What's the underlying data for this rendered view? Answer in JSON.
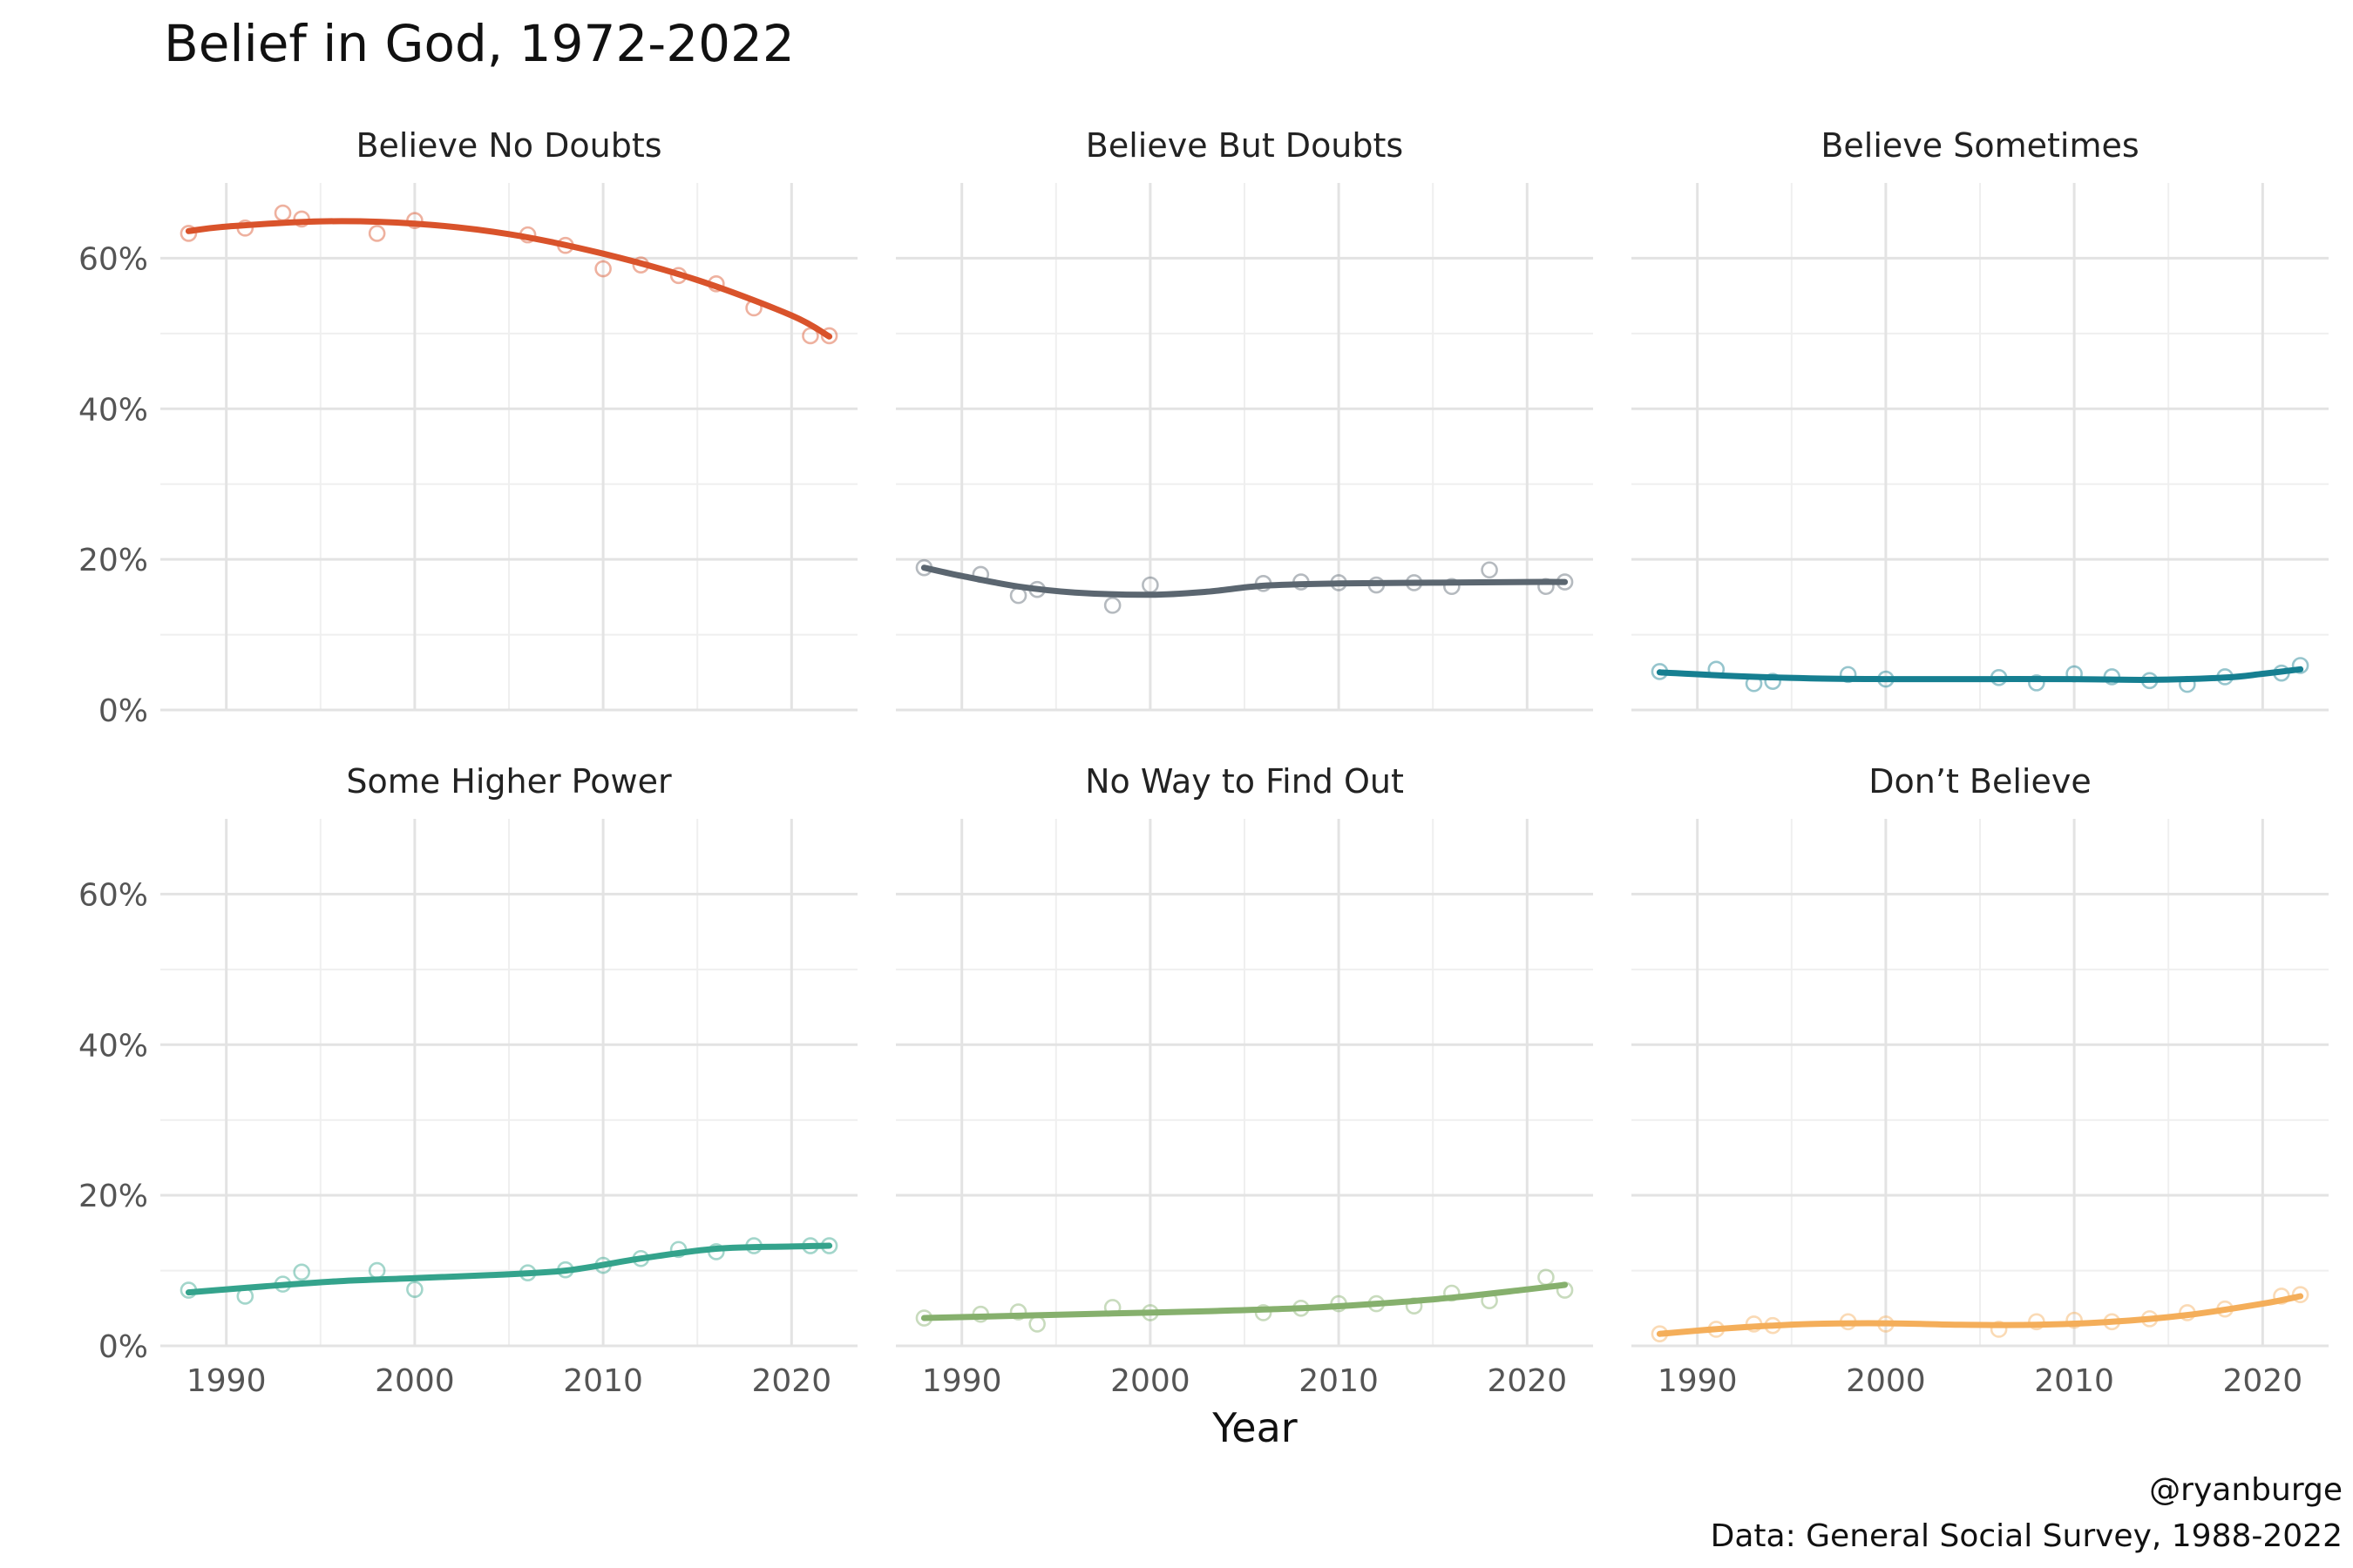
{
  "chart_data": {
    "type": "line",
    "title": "Belief in God, 1972-2022",
    "xlabel": "Year",
    "ylabel": "",
    "xlim": [
      1986.5,
      2023.5
    ],
    "ylim": [
      0,
      70
    ],
    "x_ticks": [
      1990,
      2000,
      2010,
      2020
    ],
    "x_tick_labels": [
      "1990",
      "2000",
      "2010",
      "2020"
    ],
    "y_ticks": [
      0,
      20,
      40,
      60
    ],
    "y_tick_labels": [
      "0%",
      "20%",
      "40%",
      "60%"
    ],
    "grid": true,
    "layout": "facet 2x3",
    "facets": [
      {
        "name": "Believe No Doubts",
        "color": "#D9532B",
        "points": [
          [
            1988,
            63.3
          ],
          [
            1991,
            64.0
          ],
          [
            1993,
            66.0
          ],
          [
            1994,
            65.2
          ],
          [
            1998,
            63.3
          ],
          [
            2000,
            65.0
          ],
          [
            2006,
            63.1
          ],
          [
            2008,
            61.7
          ],
          [
            2010,
            58.6
          ],
          [
            2012,
            59.1
          ],
          [
            2014,
            57.7
          ],
          [
            2016,
            56.6
          ],
          [
            2018,
            53.4
          ],
          [
            2021,
            49.7
          ],
          [
            2022,
            49.7
          ]
        ],
        "trend": [
          [
            1988,
            63.6
          ],
          [
            1990,
            64.2
          ],
          [
            1995,
            64.9
          ],
          [
            2000,
            64.6
          ],
          [
            2005,
            63.2
          ],
          [
            2010,
            60.6
          ],
          [
            2015,
            57.1
          ],
          [
            2020,
            52.4
          ],
          [
            2022,
            49.6
          ]
        ]
      },
      {
        "name": "Believe But Doubts",
        "color": "#5B6670",
        "points": [
          [
            1988,
            18.9
          ],
          [
            1991,
            18.0
          ],
          [
            1993,
            15.2
          ],
          [
            1994,
            16.0
          ],
          [
            1998,
            13.9
          ],
          [
            2000,
            16.6
          ],
          [
            2006,
            16.8
          ],
          [
            2008,
            17.0
          ],
          [
            2010,
            16.9
          ],
          [
            2012,
            16.6
          ],
          [
            2014,
            16.9
          ],
          [
            2016,
            16.4
          ],
          [
            2018,
            18.6
          ],
          [
            2021,
            16.4
          ],
          [
            2022,
            17.0
          ]
        ],
        "trend": [
          [
            1988,
            18.9
          ],
          [
            1990,
            17.8
          ],
          [
            1993,
            16.4
          ],
          [
            1996,
            15.6
          ],
          [
            2000,
            15.3
          ],
          [
            2003,
            15.7
          ],
          [
            2006,
            16.5
          ],
          [
            2010,
            16.8
          ],
          [
            2015,
            16.9
          ],
          [
            2020,
            17.0
          ],
          [
            2022,
            17.0
          ]
        ]
      },
      {
        "name": "Believe Sometimes",
        "color": "#167F91",
        "points": [
          [
            1988,
            5.1
          ],
          [
            1991,
            5.4
          ],
          [
            1993,
            3.5
          ],
          [
            1994,
            3.8
          ],
          [
            1998,
            4.7
          ],
          [
            2000,
            4.1
          ],
          [
            2006,
            4.3
          ],
          [
            2008,
            3.6
          ],
          [
            2010,
            4.8
          ],
          [
            2012,
            4.4
          ],
          [
            2014,
            3.9
          ],
          [
            2016,
            3.4
          ],
          [
            2018,
            4.4
          ],
          [
            2021,
            4.9
          ],
          [
            2022,
            5.9
          ]
        ],
        "trend": [
          [
            1988,
            5.0
          ],
          [
            1992,
            4.5
          ],
          [
            1996,
            4.2
          ],
          [
            2000,
            4.1
          ],
          [
            2005,
            4.1
          ],
          [
            2010,
            4.1
          ],
          [
            2014,
            4.0
          ],
          [
            2018,
            4.3
          ],
          [
            2020,
            4.8
          ],
          [
            2022,
            5.4
          ]
        ]
      },
      {
        "name": "Some Higher Power",
        "color": "#34A38C",
        "points": [
          [
            1988,
            7.4
          ],
          [
            1991,
            6.6
          ],
          [
            1993,
            8.2
          ],
          [
            1994,
            9.8
          ],
          [
            1998,
            10.0
          ],
          [
            2000,
            7.5
          ],
          [
            2006,
            9.7
          ],
          [
            2008,
            10.1
          ],
          [
            2010,
            10.7
          ],
          [
            2012,
            11.6
          ],
          [
            2014,
            12.8
          ],
          [
            2016,
            12.5
          ],
          [
            2018,
            13.3
          ],
          [
            2021,
            13.3
          ],
          [
            2022,
            13.3
          ]
        ],
        "trend": [
          [
            1988,
            7.1
          ],
          [
            1992,
            7.9
          ],
          [
            1996,
            8.6
          ],
          [
            2000,
            9.0
          ],
          [
            2004,
            9.4
          ],
          [
            2008,
            10.0
          ],
          [
            2012,
            11.6
          ],
          [
            2016,
            12.9
          ],
          [
            2020,
            13.2
          ],
          [
            2022,
            13.3
          ]
        ]
      },
      {
        "name": "No Way to Find Out",
        "color": "#86B06D",
        "points": [
          [
            1988,
            3.7
          ],
          [
            1991,
            4.2
          ],
          [
            1993,
            4.5
          ],
          [
            1994,
            2.9
          ],
          [
            1998,
            5.1
          ],
          [
            2000,
            4.4
          ],
          [
            2006,
            4.4
          ],
          [
            2008,
            5.0
          ],
          [
            2010,
            5.6
          ],
          [
            2012,
            5.6
          ],
          [
            2014,
            5.3
          ],
          [
            2016,
            7.0
          ],
          [
            2018,
            6.0
          ],
          [
            2021,
            9.1
          ],
          [
            2022,
            7.4
          ]
        ],
        "trend": [
          [
            1988,
            3.7
          ],
          [
            1993,
            4.0
          ],
          [
            1998,
            4.3
          ],
          [
            2003,
            4.6
          ],
          [
            2008,
            5.0
          ],
          [
            2012,
            5.6
          ],
          [
            2016,
            6.4
          ],
          [
            2020,
            7.5
          ],
          [
            2022,
            8.1
          ]
        ]
      },
      {
        "name": "Don’t Believe",
        "color": "#F4AE5A",
        "points": [
          [
            1988,
            1.6
          ],
          [
            1991,
            2.2
          ],
          [
            1993,
            2.9
          ],
          [
            1994,
            2.7
          ],
          [
            1998,
            3.2
          ],
          [
            2000,
            2.9
          ],
          [
            2006,
            2.2
          ],
          [
            2008,
            3.2
          ],
          [
            2010,
            3.4
          ],
          [
            2012,
            3.2
          ],
          [
            2014,
            3.6
          ],
          [
            2016,
            4.4
          ],
          [
            2018,
            4.9
          ],
          [
            2021,
            6.6
          ],
          [
            2022,
            6.8
          ]
        ],
        "trend": [
          [
            1988,
            1.6
          ],
          [
            1992,
            2.4
          ],
          [
            1996,
            2.9
          ],
          [
            2000,
            3.0
          ],
          [
            2004,
            2.8
          ],
          [
            2008,
            2.8
          ],
          [
            2012,
            3.2
          ],
          [
            2016,
            4.1
          ],
          [
            2020,
            5.6
          ],
          [
            2022,
            6.6
          ]
        ]
      }
    ],
    "caption": [
      "@ryanburge",
      "Data: General Social Survey, 1988-2022"
    ]
  }
}
